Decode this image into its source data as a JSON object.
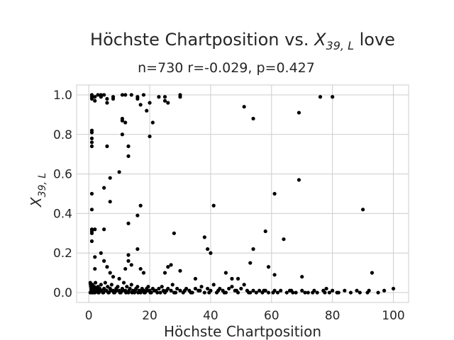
{
  "chart_data": {
    "type": "scatter",
    "title_main": "Höchste Chartposition vs. ",
    "title_var": "X",
    "title_sub": "39, L",
    "title_tail": " love",
    "subtitle": "n=730 r=-0.029, p=0.427",
    "xlabel": "Höchste Chartposition",
    "ylabel_var": "X",
    "ylabel_sub": "39, L",
    "xlim": [
      -4,
      105
    ],
    "ylim": [
      -0.05,
      1.05
    ],
    "xticks": [
      0,
      20,
      40,
      60,
      80,
      100
    ],
    "yticks": [
      0.0,
      0.2,
      0.4,
      0.6,
      0.8,
      1.0
    ],
    "ytick_labels": [
      "0.0",
      "0.2",
      "0.4",
      "0.6",
      "0.8",
      "1.0"
    ],
    "grid": true,
    "colors": {
      "points": "#000000",
      "grid": "#cccccc",
      "frame": "#cccccc",
      "text": "#262626"
    },
    "points": [
      [
        1,
        1.0
      ],
      [
        1,
        0.99
      ],
      [
        1,
        0.98
      ],
      [
        2,
        0.99
      ],
      [
        2,
        0.97
      ],
      [
        3,
        1.0
      ],
      [
        4,
        0.99
      ],
      [
        4,
        1.0
      ],
      [
        5,
        1.0
      ],
      [
        6,
        0.96
      ],
      [
        6,
        0.98
      ],
      [
        8,
        0.98
      ],
      [
        8,
        0.99
      ],
      [
        11,
        1.0
      ],
      [
        12,
        1.0
      ],
      [
        14,
        1.0
      ],
      [
        16,
        0.99
      ],
      [
        16,
        0.98
      ],
      [
        18,
        1.0
      ],
      [
        20,
        0.96
      ],
      [
        23,
        0.99
      ],
      [
        25,
        0.99
      ],
      [
        25,
        0.97
      ],
      [
        26,
        0.96
      ],
      [
        30,
        0.99
      ],
      [
        30,
        1.0
      ],
      [
        51,
        0.94
      ],
      [
        54,
        0.88
      ],
      [
        69,
        0.91
      ],
      [
        76,
        0.99
      ],
      [
        80,
        0.99
      ],
      [
        1,
        0.82
      ],
      [
        1,
        0.81
      ],
      [
        1,
        0.78
      ],
      [
        1,
        0.76
      ],
      [
        1,
        0.74
      ],
      [
        6,
        0.74
      ],
      [
        11,
        0.88
      ],
      [
        11,
        0.87
      ],
      [
        11,
        0.8
      ],
      [
        12,
        0.86
      ],
      [
        13,
        0.74
      ],
      [
        13,
        0.69
      ],
      [
        17,
        0.95
      ],
      [
        19,
        0.92
      ],
      [
        20,
        0.79
      ],
      [
        21,
        0.86
      ],
      [
        7,
        0.58
      ],
      [
        10,
        0.61
      ],
      [
        5,
        0.53
      ],
      [
        1,
        0.5
      ],
      [
        7,
        0.46
      ],
      [
        17,
        0.44
      ],
      [
        16,
        0.39
      ],
      [
        13,
        0.35
      ],
      [
        1,
        0.42
      ],
      [
        1,
        0.32
      ],
      [
        2,
        0.32
      ],
      [
        1,
        0.31
      ],
      [
        1,
        0.3
      ],
      [
        5,
        0.32
      ],
      [
        28,
        0.3
      ],
      [
        41,
        0.44
      ],
      [
        61,
        0.5
      ],
      [
        69,
        0.57
      ],
      [
        90,
        0.42
      ],
      [
        58,
        0.31
      ],
      [
        64,
        0.27
      ],
      [
        38,
        0.28
      ],
      [
        54,
        0.22
      ],
      [
        39,
        0.22
      ],
      [
        40,
        0.2
      ],
      [
        1,
        0.26
      ],
      [
        2,
        0.18
      ],
      [
        2,
        0.12
      ],
      [
        4,
        0.2
      ],
      [
        5,
        0.16
      ],
      [
        6,
        0.13
      ],
      [
        7,
        0.1
      ],
      [
        8,
        0.08
      ],
      [
        10,
        0.07
      ],
      [
        12,
        0.12
      ],
      [
        13,
        0.19
      ],
      [
        13,
        0.16
      ],
      [
        14,
        0.14
      ],
      [
        16,
        0.22
      ],
      [
        17,
        0.12
      ],
      [
        18,
        0.1
      ],
      [
        25,
        0.1
      ],
      [
        26,
        0.13
      ],
      [
        27,
        0.14
      ],
      [
        30,
        0.11
      ],
      [
        35,
        0.07
      ],
      [
        45,
        0.1
      ],
      [
        47,
        0.07
      ],
      [
        49,
        0.07
      ],
      [
        53,
        0.15
      ],
      [
        59,
        0.13
      ],
      [
        61,
        0.09
      ],
      [
        70,
        0.08
      ],
      [
        93,
        0.1
      ],
      [
        0.5,
        0.05
      ],
      [
        0.6,
        0.04
      ],
      [
        0.7,
        0.03
      ],
      [
        0.8,
        0.02
      ],
      [
        0.9,
        0.01
      ],
      [
        1,
        0.0
      ],
      [
        1.2,
        0.04
      ],
      [
        1.4,
        0.02
      ],
      [
        1.6,
        0.01
      ],
      [
        1.8,
        0.03
      ],
      [
        2,
        0.0
      ],
      [
        2.2,
        0.05
      ],
      [
        2.5,
        0.02
      ],
      [
        2.8,
        0.01
      ],
      [
        3,
        0.03
      ],
      [
        3.3,
        0.0
      ],
      [
        3.6,
        0.02
      ],
      [
        4,
        0.04
      ],
      [
        4.3,
        0.01
      ],
      [
        4.6,
        0.0
      ],
      [
        5,
        0.02
      ],
      [
        5.4,
        0.05
      ],
      [
        5.8,
        0.01
      ],
      [
        6.2,
        0.03
      ],
      [
        6.6,
        0.0
      ],
      [
        7,
        0.02
      ],
      [
        7.5,
        0.04
      ],
      [
        8,
        0.01
      ],
      [
        8.5,
        0.0
      ],
      [
        9,
        0.02
      ],
      [
        9.5,
        0.03
      ],
      [
        10,
        0.01
      ],
      [
        10.5,
        0.0
      ],
      [
        11,
        0.02
      ],
      [
        11.5,
        0.05
      ],
      [
        12,
        0.01
      ],
      [
        12.5,
        0.03
      ],
      [
        13,
        0.0
      ],
      [
        13.5,
        0.02
      ],
      [
        14,
        0.04
      ],
      [
        14.5,
        0.01
      ],
      [
        15,
        0.0
      ],
      [
        15.5,
        0.02
      ],
      [
        16,
        0.03
      ],
      [
        16.5,
        0.01
      ],
      [
        17,
        0.0
      ],
      [
        17.5,
        0.02
      ],
      [
        18,
        0.01
      ],
      [
        18.5,
        0.0
      ],
      [
        19,
        0.02
      ],
      [
        19.5,
        0.03
      ],
      [
        20,
        0.01
      ],
      [
        20.5,
        0.0
      ],
      [
        21,
        0.02
      ],
      [
        22,
        0.01
      ],
      [
        22.5,
        0.0
      ],
      [
        23,
        0.02
      ],
      [
        24,
        0.03
      ],
      [
        24.5,
        0.01
      ],
      [
        25,
        0.0
      ],
      [
        26,
        0.02
      ],
      [
        27,
        0.01
      ],
      [
        27.5,
        0.04
      ],
      [
        28,
        0.0
      ],
      [
        29,
        0.02
      ],
      [
        30,
        0.01
      ],
      [
        31,
        0.0
      ],
      [
        32,
        0.02
      ],
      [
        33,
        0.01
      ],
      [
        34,
        0.0
      ],
      [
        35,
        0.02
      ],
      [
        36,
        0.01
      ],
      [
        37,
        0.03
      ],
      [
        38,
        0.0
      ],
      [
        39,
        0.02
      ],
      [
        40,
        0.01
      ],
      [
        41,
        0.04
      ],
      [
        42,
        0.0
      ],
      [
        43,
        0.02
      ],
      [
        44,
        0.01
      ],
      [
        45,
        0.0
      ],
      [
        46,
        0.02
      ],
      [
        47,
        0.03
      ],
      [
        48,
        0.01
      ],
      [
        49,
        0.0
      ],
      [
        50,
        0.02
      ],
      [
        51,
        0.04
      ],
      [
        52,
        0.01
      ],
      [
        53,
        0.0
      ],
      [
        54,
        0.01
      ],
      [
        55,
        0.0
      ],
      [
        56,
        0.01
      ],
      [
        57,
        0.0
      ],
      [
        58,
        0.01
      ],
      [
        59,
        0.0
      ],
      [
        61,
        0.01
      ],
      [
        62,
        0.0
      ],
      [
        63,
        0.01
      ],
      [
        65,
        0.0
      ],
      [
        66,
        0.01
      ],
      [
        67,
        0.0
      ],
      [
        68,
        0.0
      ],
      [
        70,
        0.01
      ],
      [
        71,
        0.0
      ],
      [
        72,
        0.0
      ],
      [
        74,
        0.01
      ],
      [
        75,
        0.0
      ],
      [
        77,
        0.01
      ],
      [
        78,
        0.02
      ],
      [
        79,
        0.0
      ],
      [
        80,
        0.01
      ],
      [
        82,
        0.0
      ],
      [
        84,
        0.01
      ],
      [
        86,
        0.0
      ],
      [
        88,
        0.01
      ],
      [
        89,
        0.0
      ],
      [
        92,
        0.01
      ],
      [
        95,
        0.0
      ],
      [
        97,
        0.01
      ],
      [
        100,
        0.02
      ],
      [
        0.5,
        0.0
      ],
      [
        0.8,
        0.01
      ],
      [
        1.5,
        0.0
      ],
      [
        2.4,
        0.01
      ],
      [
        3.1,
        0.0
      ],
      [
        3.9,
        0.01
      ],
      [
        4.8,
        0.0
      ],
      [
        5.6,
        0.01
      ],
      [
        6.4,
        0.0
      ],
      [
        7.2,
        0.01
      ],
      [
        8.2,
        0.0
      ],
      [
        9.1,
        0.01
      ],
      [
        10.2,
        0.0
      ],
      [
        11.2,
        0.01
      ],
      [
        12.2,
        0.0
      ],
      [
        13.2,
        0.01
      ],
      [
        14.2,
        0.0
      ],
      [
        15.2,
        0.01
      ],
      [
        16.2,
        0.0
      ],
      [
        17.2,
        0.01
      ],
      [
        18.2,
        0.0
      ],
      [
        19.2,
        0.01
      ],
      [
        20.2,
        0.0
      ],
      [
        21.5,
        0.01
      ],
      [
        23.5,
        0.0
      ],
      [
        25.5,
        0.01
      ],
      [
        28.5,
        0.0
      ],
      [
        31.5,
        0.01
      ],
      [
        33.5,
        0.0
      ],
      [
        36.5,
        0.01
      ],
      [
        39.5,
        0.0
      ],
      [
        42.5,
        0.01
      ],
      [
        44.5,
        0.0
      ],
      [
        48.5,
        0.01
      ],
      [
        52.5,
        0.0
      ],
      [
        57.5,
        0.01
      ],
      [
        60.5,
        0.0
      ],
      [
        66.5,
        0.01
      ],
      [
        73.5,
        0.0
      ],
      [
        77.5,
        0.0
      ],
      [
        81.5,
        0.0
      ],
      [
        91.5,
        0.0
      ]
    ]
  }
}
